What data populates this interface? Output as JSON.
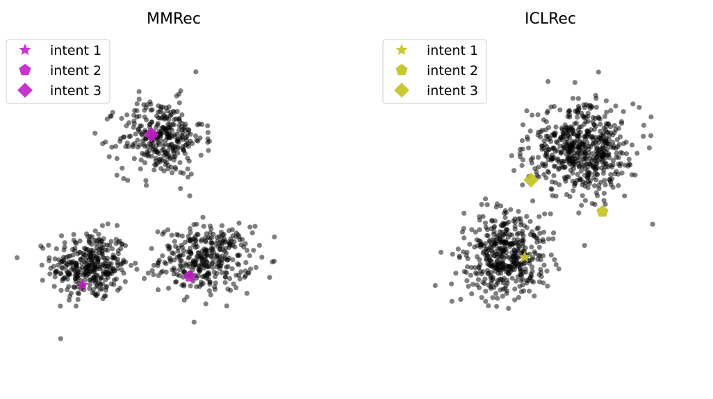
{
  "chart_data": [
    {
      "type": "scatter",
      "title": "MMRec",
      "xlim": [
        -10,
        10
      ],
      "ylim": [
        -10,
        10
      ],
      "grid": false,
      "axes_visible": false,
      "legend_position": "top-left",
      "point_color": "#000000",
      "point_alpha": 0.5,
      "clusters": [
        {
          "center": [
            -5.2,
            -2.6
          ],
          "spread": [
            2.2,
            1.8
          ],
          "count": 340
        },
        {
          "center": [
            2.0,
            -2.2
          ],
          "spread": [
            2.6,
            1.7
          ],
          "count": 340
        },
        {
          "center": [
            -0.8,
            4.7
          ],
          "spread": [
            2.4,
            2.0
          ],
          "count": 320
        }
      ],
      "intents": [
        {
          "name": "intent 1",
          "marker": "star",
          "color": "#c21fc6",
          "x": -5.7,
          "y": -3.7
        },
        {
          "name": "intent 2",
          "marker": "pentagon",
          "color": "#c21fc6",
          "x": 1.0,
          "y": -3.2
        },
        {
          "name": "intent 3",
          "marker": "diamond",
          "color": "#c21fc6",
          "x": -1.4,
          "y": 4.9
        }
      ]
    },
    {
      "type": "scatter",
      "title": "ICLRec",
      "xlim": [
        -10,
        10
      ],
      "ylim": [
        -10,
        10
      ],
      "grid": false,
      "axes_visible": false,
      "legend_position": "top-left",
      "point_color": "#000000",
      "point_alpha": 0.5,
      "clusters": [
        {
          "center": [
            2.0,
            4.0
          ],
          "spread": [
            3.0,
            2.3
          ],
          "count": 560
        },
        {
          "center": [
            -2.8,
            -2.0
          ],
          "spread": [
            2.4,
            2.2
          ],
          "count": 440
        }
      ],
      "intents": [
        {
          "name": "intent 1",
          "marker": "star",
          "color": "#c2c221",
          "x": -1.6,
          "y": -2.1
        },
        {
          "name": "intent 2",
          "marker": "pentagon",
          "color": "#c2c221",
          "x": 3.3,
          "y": 0.5
        },
        {
          "name": "intent 3",
          "marker": "diamond",
          "color": "#c2c221",
          "x": -1.2,
          "y": 2.3
        }
      ]
    }
  ]
}
